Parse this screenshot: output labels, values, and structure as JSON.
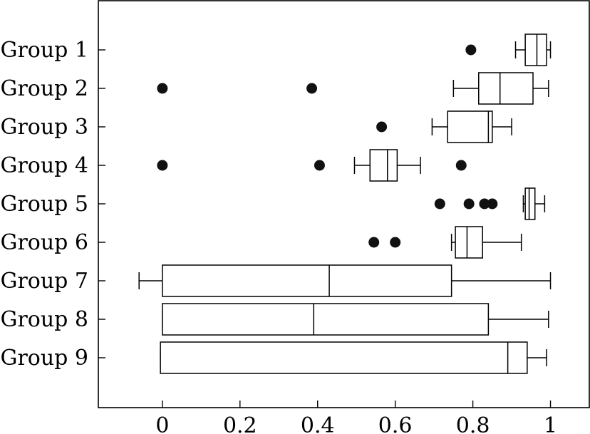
{
  "chart_data": {
    "type": "boxplot",
    "orientation": "horizontal",
    "title": "",
    "xlabel": "",
    "ylabel": "",
    "xlim": [
      -0.165,
      1.1
    ],
    "xticks": [
      0,
      0.2,
      0.4,
      0.6,
      0.8,
      1
    ],
    "xtick_labels": [
      "0",
      "0.2",
      "0.4",
      "0.6",
      "0.8",
      "1"
    ],
    "grid": false,
    "categories": [
      "Group 1",
      "Group 2",
      "Group 3",
      "Group 4",
      "Group 5",
      "Group 6",
      "Group 7",
      "Group 8",
      "Group 9"
    ],
    "boxes": [
      {
        "whisker_low": 0.91,
        "q1": 0.935,
        "median": 0.965,
        "q3": 0.99,
        "whisker_high": 1.0,
        "outliers": [
          0.795
        ]
      },
      {
        "whisker_low": 0.75,
        "q1": 0.815,
        "median": 0.87,
        "q3": 0.955,
        "whisker_high": 0.995,
        "outliers": [
          0.0,
          0.385
        ]
      },
      {
        "whisker_low": 0.695,
        "q1": 0.735,
        "median": 0.84,
        "q3": 0.85,
        "whisker_high": 0.9,
        "outliers": [
          0.565
        ]
      },
      {
        "whisker_low": 0.495,
        "q1": 0.535,
        "median": 0.58,
        "q3": 0.605,
        "whisker_high": 0.665,
        "outliers": [
          0.0,
          0.405,
          0.77
        ]
      },
      {
        "whisker_low": 0.93,
        "q1": 0.935,
        "median": 0.945,
        "q3": 0.96,
        "whisker_high": 0.985,
        "outliers": [
          0.715,
          0.79,
          0.83,
          0.85
        ]
      },
      {
        "whisker_low": 0.745,
        "q1": 0.755,
        "median": 0.785,
        "q3": 0.825,
        "whisker_high": 0.925,
        "outliers": [
          0.545,
          0.6
        ]
      },
      {
        "whisker_low": -0.06,
        "q1": 0.0,
        "median": 0.43,
        "q3": 0.745,
        "whisker_high": 1.0,
        "outliers": []
      },
      {
        "whisker_low": 0.0,
        "q1": 0.0,
        "median": 0.39,
        "q3": 0.84,
        "whisker_high": 0.995,
        "outliers": []
      },
      {
        "whisker_low": -0.005,
        "q1": -0.005,
        "median": 0.89,
        "q3": 0.94,
        "whisker_high": 0.99,
        "outliers": []
      }
    ],
    "legend": null
  }
}
